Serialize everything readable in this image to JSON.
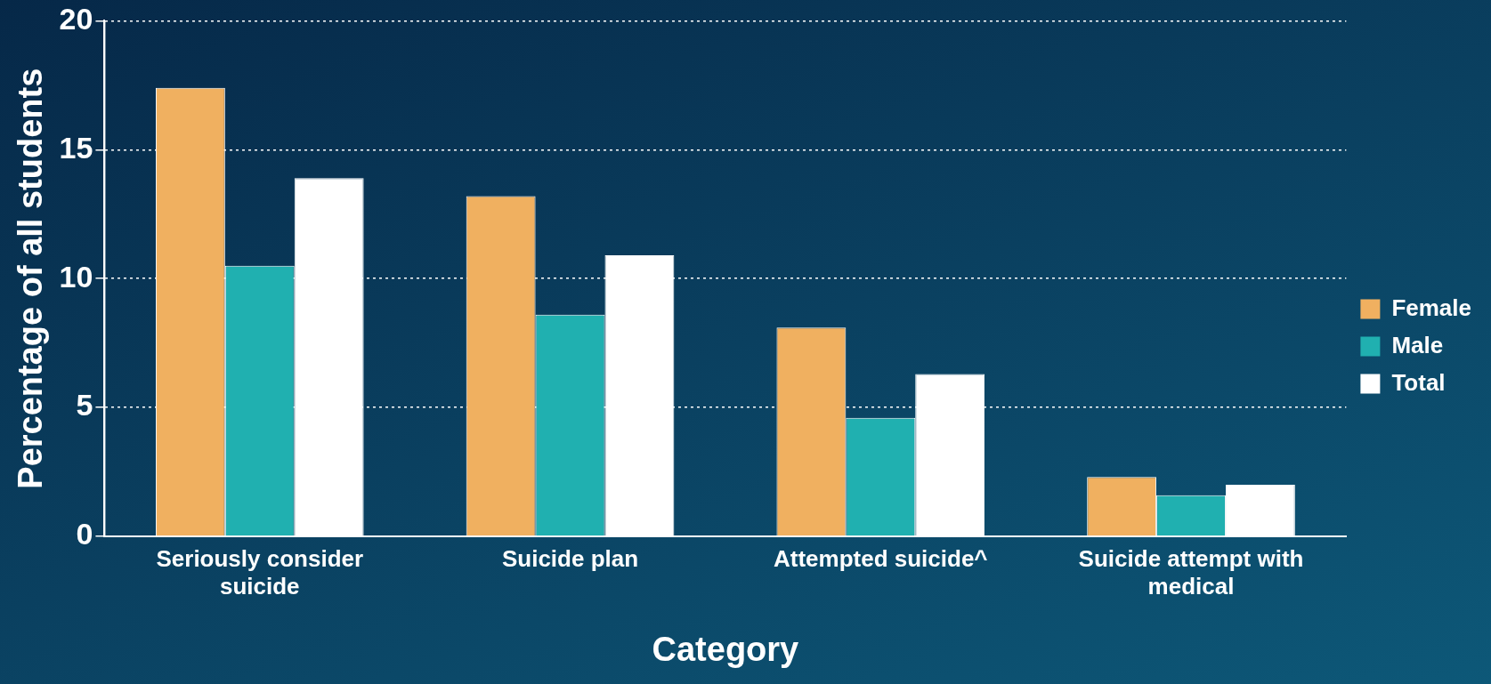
{
  "chart_data": {
    "type": "bar",
    "xlabel": "Category",
    "ylabel": "Percentage of all students",
    "categories": [
      "Seriously consider suicide",
      "Suicide plan",
      "Attempted suicide^",
      "Suicide attempt with medical"
    ],
    "series": [
      {
        "name": "Female",
        "color": "#f0b060",
        "values": [
          17.4,
          13.2,
          8.1,
          2.3
        ]
      },
      {
        "name": "Male",
        "color": "#20b0b0",
        "values": [
          10.5,
          8.6,
          4.6,
          1.6
        ]
      },
      {
        "name": "Total",
        "color": "#ffffff",
        "values": [
          13.9,
          10.9,
          6.3,
          2.0
        ]
      }
    ],
    "ylim": [
      0,
      20
    ],
    "yticks": [
      0,
      5,
      10,
      15,
      20
    ],
    "grid": "y",
    "legend": "right"
  }
}
